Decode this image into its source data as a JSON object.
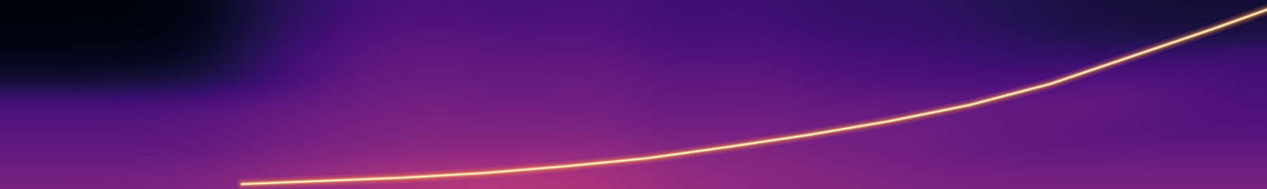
{
  "chart_data": {
    "type": "heatmap",
    "tick_labels": false,
    "xlim": [
      0,
      100
    ],
    "ylim": [
      0,
      100
    ],
    "color_range": [
      0,
      1
    ],
    "cells": [
      [
        0.35,
        0.35,
        0.36,
        0.42,
        0.45,
        0.5,
        0.5,
        0.48,
        0.42,
        0.4,
        0.38,
        0.36,
        0.35,
        0.35,
        0.35,
        0.35
      ],
      [
        0.3,
        0.3,
        0.3,
        0.35,
        0.38,
        0.4,
        0.4,
        0.42,
        0.38,
        0.38,
        0.35,
        0.33,
        0.3,
        0.3,
        0.3,
        0.3
      ],
      [
        0.27,
        0.27,
        0.28,
        0.32,
        0.35,
        0.37,
        0.36,
        0.37,
        0.33,
        0.35,
        0.33,
        0.34,
        0.3,
        0.28,
        0.26,
        0.26
      ],
      [
        0.25,
        0.25,
        0.26,
        0.3,
        0.33,
        0.35,
        0.33,
        0.35,
        0.3,
        0.32,
        0.3,
        0.3,
        0.3,
        0.32,
        0.28,
        0.25
      ],
      [
        0.1,
        0.1,
        0.12,
        0.22,
        0.3,
        0.32,
        0.3,
        0.32,
        0.28,
        0.3,
        0.26,
        0.25,
        0.24,
        0.25,
        0.28,
        0.22
      ],
      [
        0.05,
        0.05,
        0.06,
        0.2,
        0.28,
        0.3,
        0.28,
        0.3,
        0.25,
        0.27,
        0.23,
        0.22,
        0.2,
        0.18,
        0.2,
        0.22
      ],
      [
        0.03,
        0.03,
        0.04,
        0.17,
        0.25,
        0.28,
        0.25,
        0.27,
        0.22,
        0.24,
        0.2,
        0.2,
        0.17,
        0.14,
        0.12,
        0.12
      ],
      [
        0.02,
        0.02,
        0.03,
        0.15,
        0.22,
        0.25,
        0.22,
        0.25,
        0.2,
        0.22,
        0.18,
        0.18,
        0.15,
        0.12,
        0.1,
        0.1
      ]
    ],
    "x": [
      19.1,
      25.5,
      31.9,
      38.3,
      44.6,
      51.0,
      57.4,
      63.8,
      70.2,
      76.5,
      82.9,
      89.3,
      95.7,
      100.0
    ],
    "series": [
      {
        "type": "line",
        "color": "#fff3c4",
        "line_style": "solid",
        "values": [
          2.6,
          4.3,
          6.0,
          8.5,
          12.0,
          16.2,
          22.2,
          28.6,
          35.9,
          44.4,
          55.6,
          70.1,
          84.6,
          94.9
        ]
      }
    ]
  }
}
